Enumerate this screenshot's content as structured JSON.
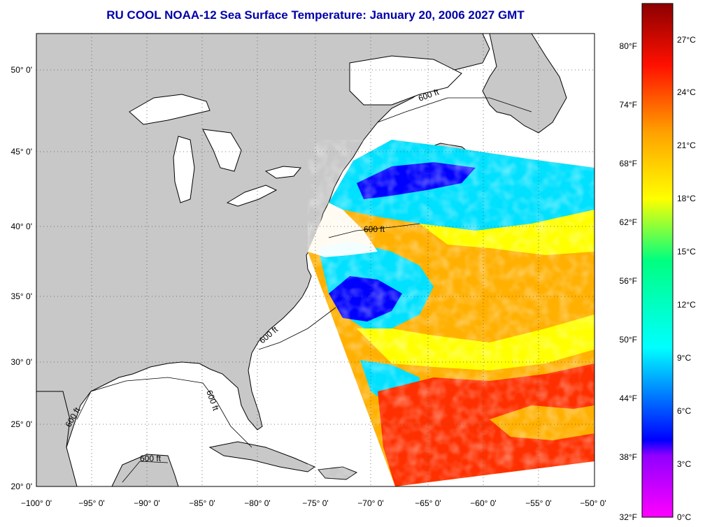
{
  "title": "RU COOL  NOAA-12  Sea Surface Temperature:  January 20, 2006 2027 GMT",
  "map": {
    "lon_range": [
      -100,
      -50
    ],
    "lat_range": [
      20,
      52.5
    ],
    "lon_ticks": [
      "−100° 0'",
      "−95° 0'",
      "−90° 0'",
      "−85° 0'",
      "−80° 0'",
      "−75° 0'",
      "−70° 0'",
      "−65° 0'",
      "−60° 0'",
      "−55° 0'",
      "−50° 0'"
    ],
    "lat_ticks": [
      "50° 0'",
      "45° 0'",
      "40° 0'",
      "35° 0'",
      "30° 0'",
      "25° 0'",
      "20° 0'"
    ],
    "contour_labels": [
      "600 ft",
      "600 ft",
      "600 ft",
      "600 ft",
      "600 ft",
      "600 ft"
    ],
    "land_color": "#c8c8c8",
    "colors": {
      "cold": "#0000ff",
      "cool": "#00e0ff",
      "mild": "#ffff00",
      "warm": "#ffb000",
      "hot": "#ff3000"
    }
  },
  "colorbar": {
    "celsius": [
      "27°C",
      "24°C",
      "21°C",
      "18°C",
      "15°C",
      "12°C",
      "9°C",
      "6°C",
      "3°C",
      "0°C"
    ],
    "fahrenheit": [
      "80°F",
      "74°F",
      "68°F",
      "62°F",
      "56°F",
      "50°F",
      "44°F",
      "38°F",
      "32°F"
    ]
  }
}
